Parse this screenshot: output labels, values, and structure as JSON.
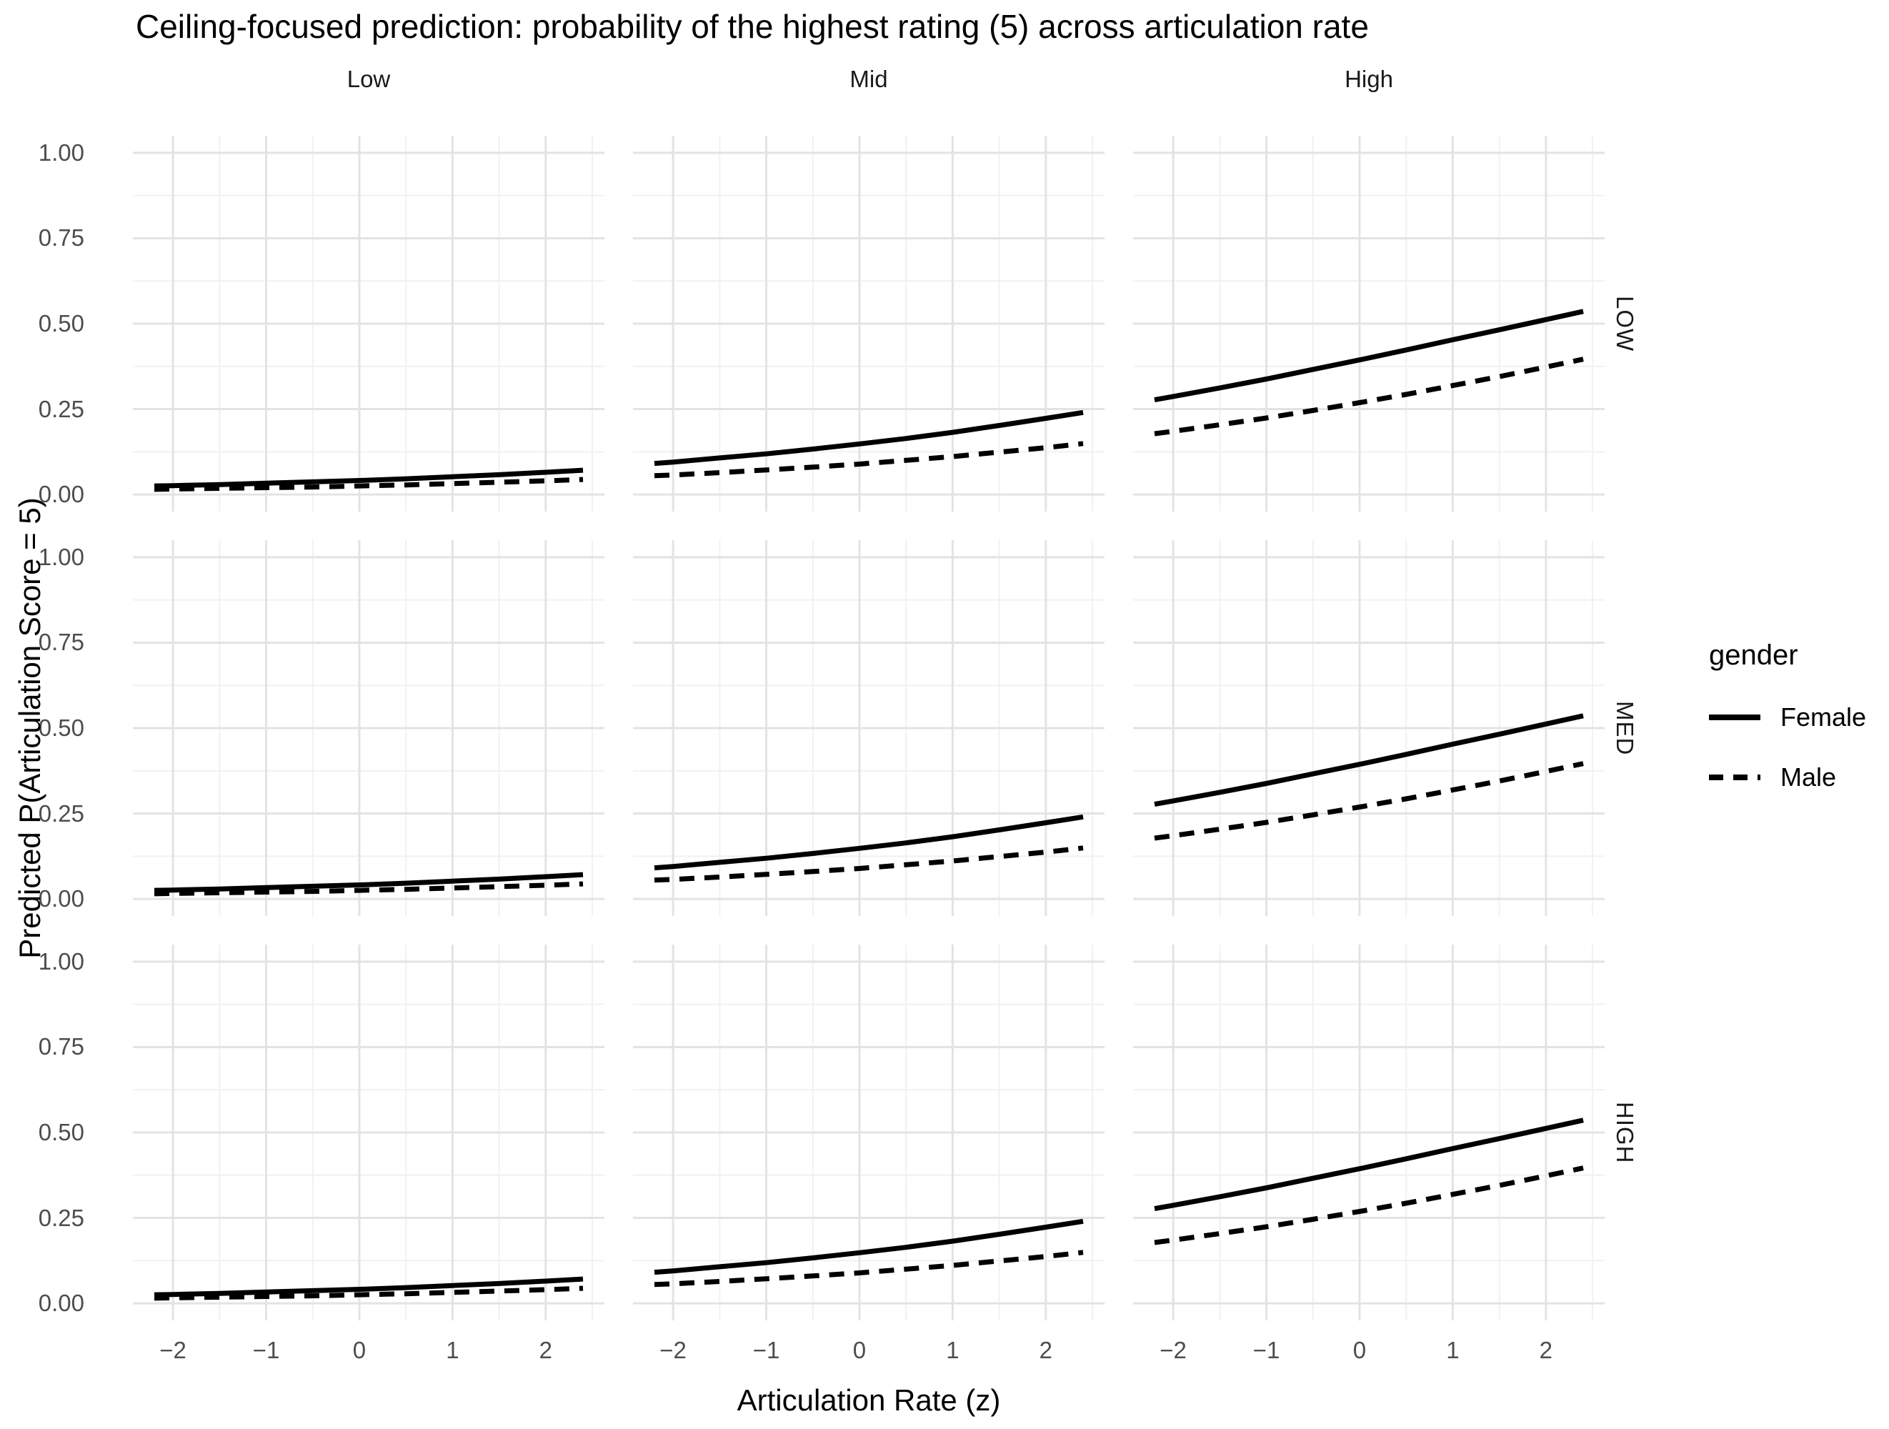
{
  "title": "Ceiling-focused prediction: probability of the highest rating (5) across articulation rate",
  "axes": {
    "x_title": "Articulation Rate (z)",
    "y_title": "Predicted P(Articulation Score = 5)",
    "x_tick_labels": [
      "−2",
      "−1",
      "0",
      "1",
      "2"
    ],
    "y_tick_labels": [
      "1.00",
      "0.75",
      "0.50",
      "0.25",
      "0.00"
    ]
  },
  "facets": {
    "columns": [
      "Low",
      "Mid",
      "High"
    ],
    "rows": [
      "LOW",
      "MED",
      "HIGH"
    ]
  },
  "legend": {
    "title": "gender",
    "items": [
      {
        "label": "Female",
        "line": "solid"
      },
      {
        "label": "Male",
        "line": "dashed"
      }
    ]
  },
  "colors": {
    "background": "#ffffff",
    "grid_major": "#e3e3e3",
    "grid_minor": "#f1f1f1",
    "tick_label": "#4d4d4d",
    "facet_text": "#1a1a1a",
    "line": "#000000"
  },
  "chart_data": {
    "type": "line",
    "title": "Ceiling-focused prediction: probability of the highest rating (5) across articulation rate",
    "xlabel": "Articulation Rate (z)",
    "ylabel": "Predicted P(Articulation Score = 5)",
    "ylim": [
      0,
      1
    ],
    "xlim": [
      -2.43,
      2.63
    ],
    "y_major_ticks": [
      0,
      0.25,
      0.5,
      0.75,
      1.0
    ],
    "y_minor_ticks": [
      0.125,
      0.375,
      0.625,
      0.875
    ],
    "x_major_ticks": [
      -2,
      -1,
      0,
      1,
      2
    ],
    "x_minor_ticks": [
      -1.5,
      -0.5,
      0.5,
      1.5,
      2.5
    ],
    "grid": true,
    "legend_position": "right",
    "facet_note": "3x3 grid: columns = articulation band (Low, Mid, High); rows = LOW, MED, HIGH. All three rows display identical predicted curves.",
    "x": [
      -2.2,
      -2,
      -1.5,
      -1,
      -0.5,
      0,
      0.5,
      1,
      1.5,
      2,
      2.4
    ],
    "series": [
      {
        "facet_col": "Low",
        "gender": "Female",
        "style": "solid",
        "values": [
          0.025,
          0.026,
          0.029,
          0.033,
          0.037,
          0.041,
          0.046,
          0.052,
          0.058,
          0.065,
          0.071
        ]
      },
      {
        "facet_col": "Low",
        "gender": "Male",
        "style": "dashed",
        "values": [
          0.015,
          0.016,
          0.018,
          0.02,
          0.022,
          0.025,
          0.028,
          0.032,
          0.036,
          0.04,
          0.044
        ]
      },
      {
        "facet_col": "Mid",
        "gender": "Female",
        "style": "solid",
        "values": [
          0.091,
          0.095,
          0.107,
          0.119,
          0.133,
          0.148,
          0.164,
          0.182,
          0.202,
          0.223,
          0.24
        ]
      },
      {
        "facet_col": "Mid",
        "gender": "Male",
        "style": "dashed",
        "values": [
          0.055,
          0.057,
          0.064,
          0.072,
          0.08,
          0.089,
          0.1,
          0.111,
          0.124,
          0.137,
          0.149
        ]
      },
      {
        "facet_col": "High",
        "gender": "Female",
        "style": "solid",
        "values": [
          0.277,
          0.287,
          0.312,
          0.338,
          0.366,
          0.394,
          0.423,
          0.453,
          0.482,
          0.512,
          0.536
        ]
      },
      {
        "facet_col": "High",
        "gender": "Male",
        "style": "dashed",
        "values": [
          0.178,
          0.185,
          0.204,
          0.224,
          0.246,
          0.269,
          0.293,
          0.319,
          0.345,
          0.373,
          0.396
        ]
      }
    ]
  }
}
